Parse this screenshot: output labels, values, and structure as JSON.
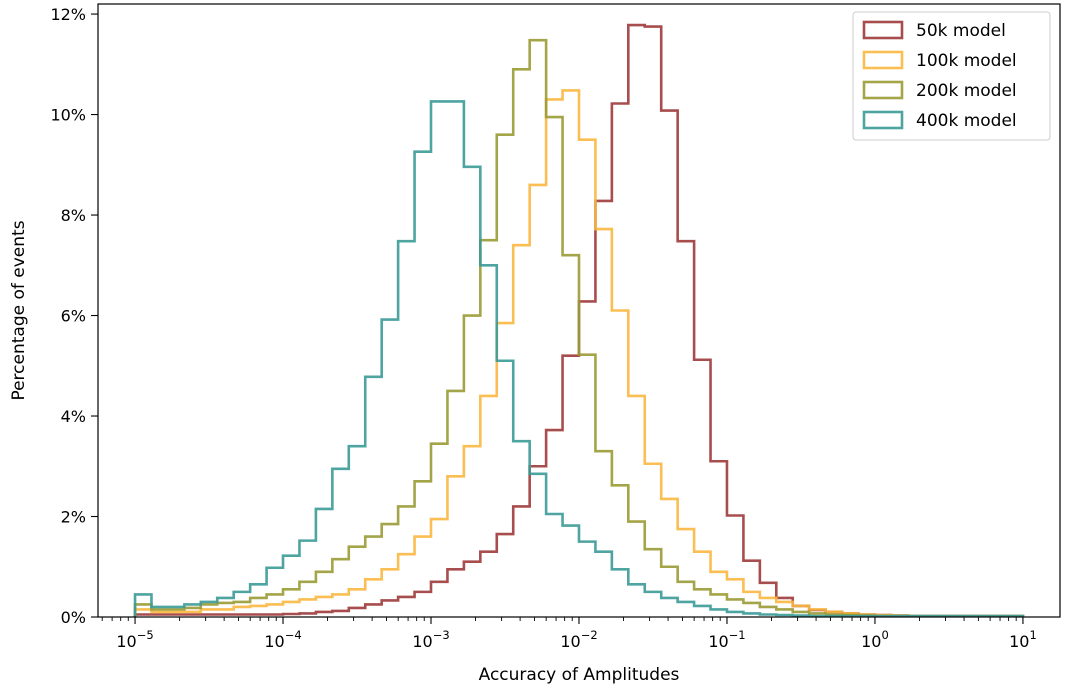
{
  "chart_data": {
    "type": "histogram",
    "xscale": "log",
    "xlabel": "Accuracy of Amplitudes",
    "ylabel": "Percentage of events",
    "xlim": [
      5.6e-06,
      1.4e-05
    ],
    "xlim_note": "",
    "x_range": [
      5.62e-06,
      17.8
    ],
    "ylim": [
      0,
      12.2
    ],
    "x_ticks": [
      {
        "value": 1e-05,
        "base": "10",
        "exp": "−5"
      },
      {
        "value": 0.0001,
        "base": "10",
        "exp": "−4"
      },
      {
        "value": 0.001,
        "base": "10",
        "exp": "−3"
      },
      {
        "value": 0.01,
        "base": "10",
        "exp": "−2"
      },
      {
        "value": 0.1,
        "base": "10",
        "exp": "−1"
      },
      {
        "value": 1,
        "base": "10",
        "exp": "0"
      },
      {
        "value": 10,
        "base": "10",
        "exp": "1"
      }
    ],
    "y_ticks": [
      {
        "value": 0,
        "label": "0%"
      },
      {
        "value": 2,
        "label": "2%"
      },
      {
        "value": 4,
        "label": "4%"
      },
      {
        "value": 6,
        "label": "6%"
      },
      {
        "value": 8,
        "label": "8%"
      },
      {
        "value": 10,
        "label": "10%"
      },
      {
        "value": 12,
        "label": "12%"
      }
    ],
    "grid": false,
    "legend_position": "top-right",
    "bin_edges_log10": [
      -5.0,
      -4.8889,
      -4.7778,
      -4.6667,
      -4.5556,
      -4.4444,
      -4.3333,
      -4.2222,
      -4.1111,
      -4.0,
      -3.8889,
      -3.7778,
      -3.6667,
      -3.5556,
      -3.4444,
      -3.3333,
      -3.2222,
      -3.1111,
      -3.0,
      -2.8889,
      -2.7778,
      -2.6667,
      -2.5556,
      -2.4444,
      -2.3333,
      -2.2222,
      -2.1111,
      -2.0,
      -1.8889,
      -1.7778,
      -1.6667,
      -1.5556,
      -1.4444,
      -1.3333,
      -1.2222,
      -1.1111,
      -1.0,
      -0.8889,
      -0.7778,
      -0.6667,
      -0.5556,
      -0.4444,
      -0.3333,
      -0.2222,
      -0.1111,
      0.0,
      0.1111,
      0.2222,
      0.3333,
      0.4444,
      0.5556,
      0.6667,
      0.7778,
      0.8889,
      1.0
    ],
    "series": [
      {
        "name": "50k model",
        "color": "#9f3a3a",
        "values": [
          0.05,
          0.05,
          0.05,
          0.05,
          0.05,
          0.05,
          0.05,
          0.05,
          0.05,
          0.06,
          0.07,
          0.1,
          0.12,
          0.18,
          0.25,
          0.33,
          0.4,
          0.5,
          0.7,
          0.95,
          1.1,
          1.3,
          1.65,
          2.2,
          3.0,
          3.72,
          5.2,
          6.28,
          8.28,
          10.22,
          11.78,
          11.75,
          10.08,
          7.48,
          5.12,
          3.1,
          2.02,
          1.12,
          0.68,
          0.38,
          0.22,
          0.14,
          0.1,
          0.07,
          0.05,
          0.04,
          0.03,
          0.02,
          0.02,
          0.02,
          0.02,
          0.02,
          0.02,
          0.02
        ]
      },
      {
        "name": "100k model",
        "color": "#f9b73f",
        "values": [
          0.15,
          0.1,
          0.1,
          0.1,
          0.15,
          0.15,
          0.2,
          0.22,
          0.25,
          0.3,
          0.35,
          0.4,
          0.45,
          0.55,
          0.75,
          0.95,
          1.25,
          1.6,
          1.95,
          2.8,
          3.4,
          4.4,
          5.85,
          7.4,
          8.6,
          10.3,
          10.48,
          9.5,
          7.72,
          6.1,
          4.4,
          3.05,
          2.35,
          1.75,
          1.3,
          0.9,
          0.75,
          0.5,
          0.38,
          0.3,
          0.22,
          0.15,
          0.1,
          0.07,
          0.05,
          0.04,
          0.03,
          0.02,
          0.02,
          0.02,
          0.02,
          0.02,
          0.02,
          0.02
        ]
      },
      {
        "name": "200k model",
        "color": "#9a9a35",
        "values": [
          0.25,
          0.15,
          0.15,
          0.18,
          0.25,
          0.28,
          0.3,
          0.38,
          0.45,
          0.55,
          0.7,
          0.9,
          1.15,
          1.4,
          1.6,
          1.85,
          2.2,
          2.7,
          3.45,
          4.5,
          6.0,
          7.5,
          9.6,
          10.9,
          11.48,
          9.95,
          7.2,
          5.22,
          3.3,
          2.62,
          1.9,
          1.35,
          1.0,
          0.7,
          0.55,
          0.45,
          0.35,
          0.28,
          0.2,
          0.15,
          0.1,
          0.07,
          0.05,
          0.04,
          0.03,
          0.02,
          0.02,
          0.02,
          0.02,
          0.02,
          0.02,
          0.02,
          0.02,
          0.02
        ]
      },
      {
        "name": "400k model",
        "color": "#3a9a96",
        "values": [
          0.45,
          0.2,
          0.2,
          0.25,
          0.3,
          0.38,
          0.5,
          0.65,
          0.98,
          1.22,
          1.52,
          2.15,
          2.95,
          3.4,
          4.78,
          5.92,
          7.48,
          9.26,
          10.26,
          10.26,
          8.96,
          7.0,
          5.1,
          3.5,
          2.85,
          2.05,
          1.82,
          1.5,
          1.3,
          0.95,
          0.65,
          0.5,
          0.38,
          0.3,
          0.22,
          0.15,
          0.1,
          0.07,
          0.05,
          0.04,
          0.03,
          0.02,
          0.02,
          0.02,
          0.02,
          0.02,
          0.02,
          0.02,
          0.02,
          0.02,
          0.02,
          0.02,
          0.02,
          0.02
        ]
      }
    ]
  }
}
